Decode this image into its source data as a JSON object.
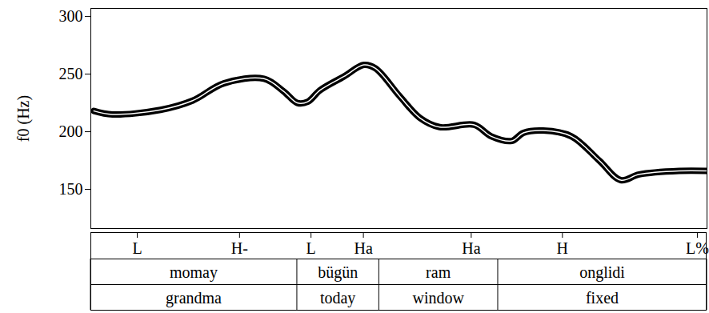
{
  "chart_data": {
    "type": "line",
    "y_label": "f0 (Hz)",
    "color": "#000000",
    "tick_labels": "y",
    "xlim": [
      0,
      1
    ],
    "ylim": [
      116,
      307
    ],
    "yticks": [
      150,
      200,
      250,
      300
    ],
    "x": [
      0.005,
      0.035,
      0.113,
      0.165,
      0.216,
      0.281,
      0.313,
      0.335,
      0.352,
      0.372,
      0.411,
      0.443,
      0.462,
      0.501,
      0.534,
      0.566,
      0.622,
      0.65,
      0.683,
      0.702,
      0.734,
      0.78,
      0.825,
      0.86,
      0.89,
      0.955,
      1.0
    ],
    "values": [
      218,
      215,
      219,
      227,
      242,
      246,
      235,
      225,
      226,
      236,
      248,
      258,
      255,
      231,
      212,
      204,
      206,
      196,
      192,
      199,
      201,
      196,
      175,
      158,
      163,
      166,
      166
    ],
    "tones": [
      {
        "label": "L",
        "x": 0.076
      },
      {
        "label": "H-",
        "x": 0.242
      },
      {
        "label": "L",
        "x": 0.358
      },
      {
        "label": "Ha",
        "x": 0.443
      },
      {
        "label": "Ha",
        "x": 0.618
      },
      {
        "label": "H",
        "x": 0.766
      },
      {
        "label": "L%",
        "x": 0.985
      }
    ],
    "word_boundaries": [
      0,
      0.335,
      0.468,
      0.661,
      1
    ],
    "words": [
      "momay",
      "bügün",
      "ram",
      "onglidi"
    ],
    "glosses": [
      "grandma",
      "today",
      "window",
      "fixed"
    ]
  }
}
